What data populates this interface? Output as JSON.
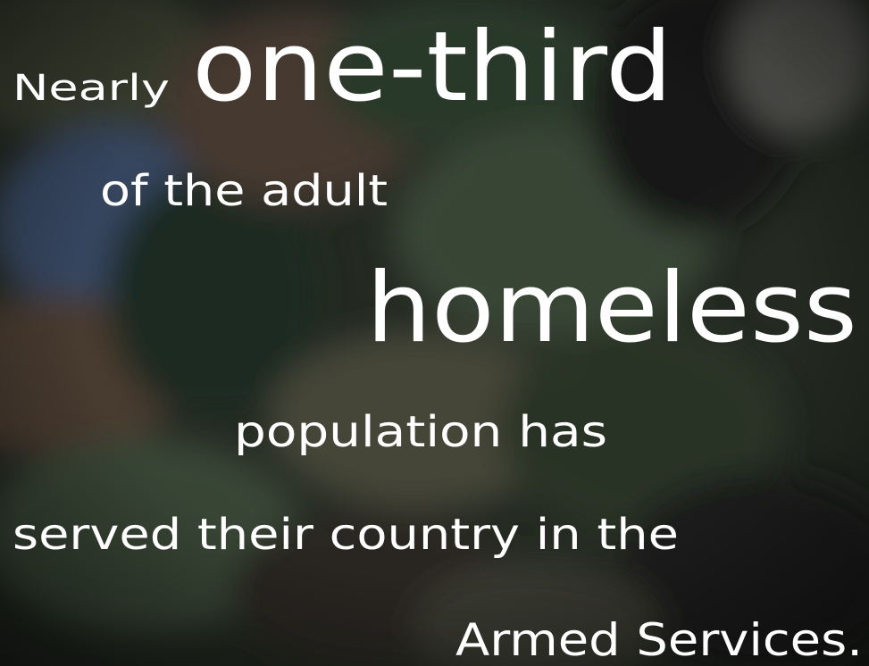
{
  "lines": [
    "Nearly",
    "one-third",
    "of the adult",
    "homeless",
    "population has",
    "served their country in the",
    "Armed Services."
  ]
}
